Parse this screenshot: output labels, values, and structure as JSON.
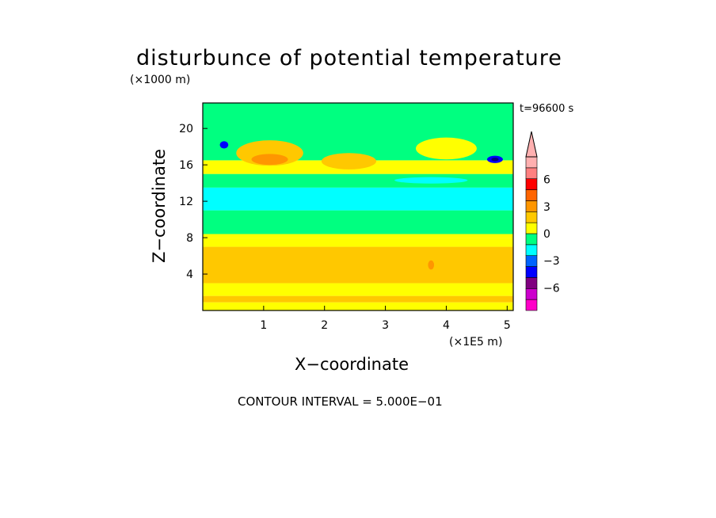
{
  "chart_data": {
    "type": "heatmap",
    "title": "disturbunce of potential temperature",
    "xlabel": "X−coordinate",
    "ylabel": "Z−coordinate",
    "x_unit": "(×1E5 m)",
    "y_unit": "(×1000 m)",
    "time_label": "t=96600 s",
    "footer": "CONTOUR INTERVAL = 5.000E−01",
    "xlim": [
      0,
      5.1
    ],
    "ylim": [
      0,
      22.8
    ],
    "x_ticks": [
      "1",
      "2",
      "3",
      "4",
      "5"
    ],
    "x_tick_values": [
      1,
      2,
      3,
      4,
      5
    ],
    "y_ticks": [
      "4",
      "8",
      "12",
      "16",
      "20"
    ],
    "y_tick_values": [
      4,
      8,
      12,
      16,
      20
    ],
    "colorbar": {
      "tick_labels": [
        "6",
        "3",
        "0",
        "−3",
        "−6"
      ],
      "tick_values": [
        6,
        3,
        0,
        -3,
        -6
      ],
      "colors": [
        "#ff00c8",
        "#cc00cc",
        "#800080",
        "#0000ff",
        "#0064ff",
        "#00ffff",
        "#00ff80",
        "#ffff00",
        "#ffc800",
        "#ff9600",
        "#ff6400",
        "#ff0000",
        "#ff8080",
        "#ffb0b0"
      ]
    },
    "bands": [
      {
        "z0": 0.0,
        "z1": 0.9,
        "color": "#ffff00"
      },
      {
        "z0": 0.9,
        "z1": 1.6,
        "color": "#ffc800"
      },
      {
        "z0": 1.6,
        "z1": 3.0,
        "color": "#ffff00"
      },
      {
        "z0": 3.0,
        "z1": 7.0,
        "color": "#ffc800"
      },
      {
        "z0": 7.0,
        "z1": 8.0,
        "color": "#ffff00"
      },
      {
        "z0": 8.0,
        "z1": 8.4,
        "color": "#ffff00"
      },
      {
        "z0": 8.4,
        "z1": 11.0,
        "color": "#00ff80"
      },
      {
        "z0": 11.0,
        "z1": 13.5,
        "color": "#00ffff"
      },
      {
        "z0": 13.5,
        "z1": 15.0,
        "color": "#00ff80"
      },
      {
        "z0": 15.0,
        "z1": 16.5,
        "color": "#ffff00"
      },
      {
        "z0": 16.5,
        "z1": 22.8,
        "color": "#00ff80"
      }
    ],
    "features": [
      {
        "x": 1.1,
        "z": 17.3,
        "rx": 0.55,
        "rz": 1.4,
        "color": "#ffc800"
      },
      {
        "x": 1.1,
        "z": 16.6,
        "rx": 0.3,
        "rz": 0.6,
        "color": "#ff9600"
      },
      {
        "x": 2.4,
        "z": 16.4,
        "rx": 0.45,
        "rz": 0.9,
        "color": "#ffc800"
      },
      {
        "x": 4.0,
        "z": 17.8,
        "rx": 0.5,
        "rz": 1.2,
        "color": "#ffff00"
      },
      {
        "x": 0.35,
        "z": 18.2,
        "rx": 0.07,
        "rz": 0.4,
        "color": "#0000ff"
      },
      {
        "x": 4.8,
        "z": 16.6,
        "rx": 0.13,
        "rz": 0.4,
        "color": "#0000ff"
      },
      {
        "x": 4.8,
        "z": 16.6,
        "rx": 0.06,
        "rz": 0.2,
        "color": "#000080"
      },
      {
        "x": 3.75,
        "z": 5.0,
        "rx": 0.05,
        "rz": 0.5,
        "color": "#ff9600"
      },
      {
        "x": 3.75,
        "z": 14.3,
        "rx": 0.6,
        "rz": 0.35,
        "color": "#00ffff"
      }
    ]
  }
}
